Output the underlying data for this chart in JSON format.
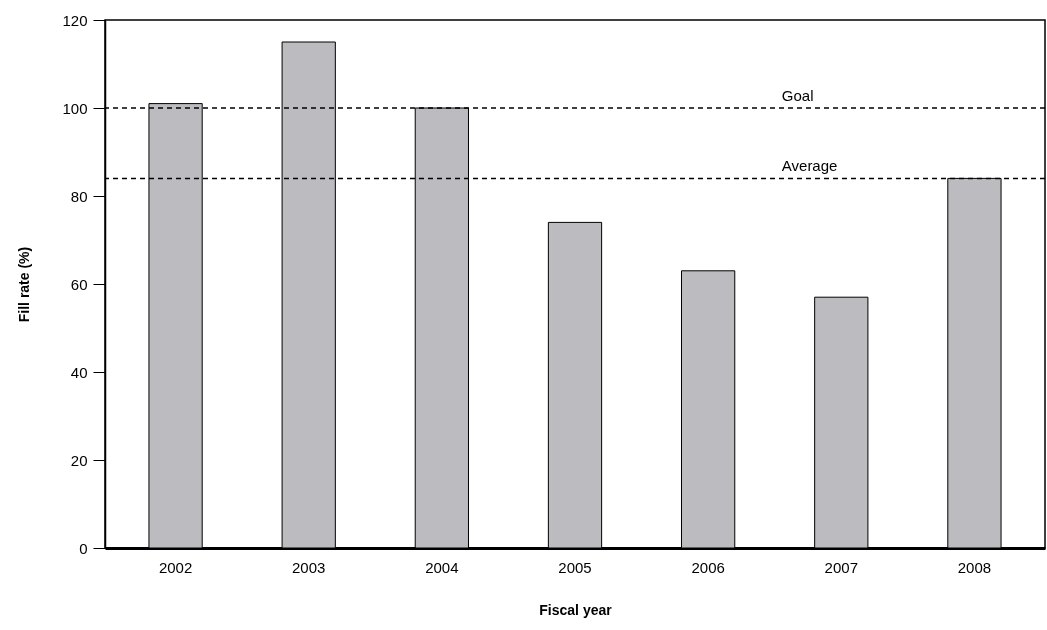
{
  "chart_data": {
    "type": "bar",
    "xlabel": "Fiscal year",
    "ylabel": "Fill rate (%)",
    "categories": [
      "2002",
      "2003",
      "2004",
      "2005",
      "2006",
      "2007",
      "2008"
    ],
    "values": [
      101,
      115,
      100,
      74,
      63,
      57,
      84
    ],
    "color": "#bcbcc0",
    "ylim": [
      0,
      120
    ],
    "yticks": [
      0,
      20,
      40,
      60,
      80,
      100,
      120
    ],
    "grid": false,
    "ref_lines": [
      {
        "axis": "y",
        "value": 100,
        "label": "Goal",
        "color": "#000000",
        "line_style": "dashed"
      },
      {
        "axis": "y",
        "value": 84,
        "label": "Average",
        "color": "#000000",
        "line_style": "dashed"
      }
    ]
  }
}
